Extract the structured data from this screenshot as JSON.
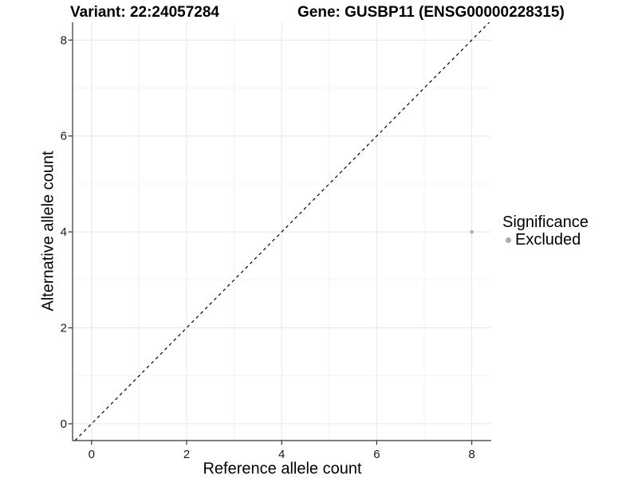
{
  "chart_data": {
    "type": "scatter",
    "title_left": "Variant: 22:24057284",
    "title_right": "Gene: GUSBP11 (ENSG00000228315)",
    "xlabel": "Reference allele count",
    "ylabel": "Alternative allele count",
    "xlim": [
      -0.4,
      8.41
    ],
    "ylim": [
      -0.35,
      8.37
    ],
    "x_ticks": [
      0,
      2,
      4,
      6,
      8
    ],
    "y_ticks": [
      0,
      2,
      4,
      6,
      8
    ],
    "x_minor_ticks": [
      1,
      3,
      5,
      7
    ],
    "y_minor_ticks": [
      1,
      3,
      5,
      7
    ],
    "grid": "major+minor",
    "legend_position": "right",
    "legend_title": "Significance",
    "reference_line": {
      "kind": "identity",
      "slope": 1,
      "intercept": 0,
      "style": "dashed",
      "color": "#000000"
    },
    "series": [
      {
        "name": "Excluded",
        "color": "#adadad",
        "points": [
          {
            "x": 8,
            "y": 4
          }
        ]
      }
    ],
    "colors": {
      "grid_major": "#e6e6e6",
      "grid_minor": "#f3f3f3",
      "axis_line": "#333333",
      "tick_label": "#1a1a1a",
      "text": "#000000"
    }
  }
}
